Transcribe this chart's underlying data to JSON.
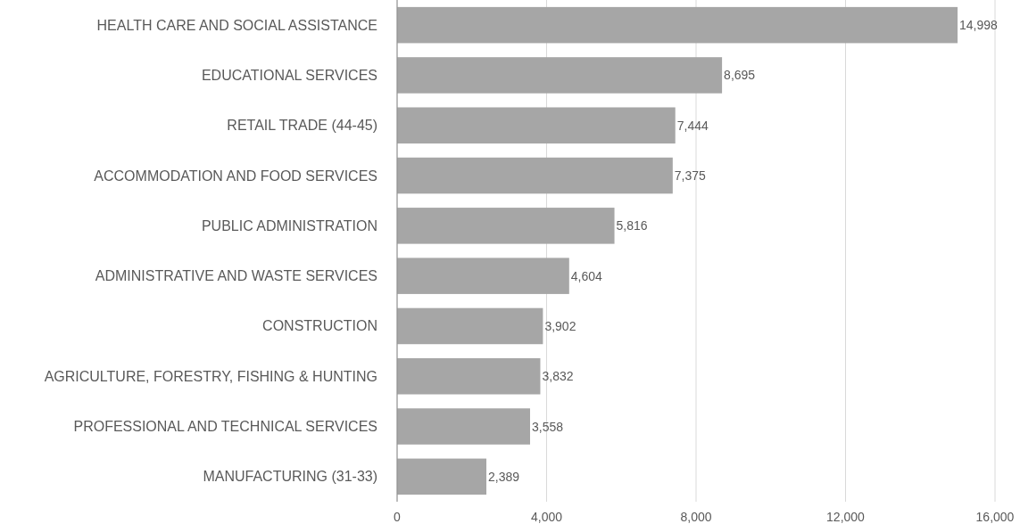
{
  "chart_data": {
    "type": "bar",
    "orientation": "horizontal",
    "categories": [
      "HEALTH CARE AND SOCIAL ASSISTANCE",
      "EDUCATIONAL SERVICES",
      "RETAIL TRADE (44-45)",
      "ACCOMMODATION AND FOOD SERVICES",
      "PUBLIC ADMINISTRATION",
      "ADMINISTRATIVE AND WASTE SERVICES",
      "CONSTRUCTION",
      "AGRICULTURE, FORESTRY, FISHING & HUNTING",
      "PROFESSIONAL AND TECHNICAL SERVICES",
      "MANUFACTURING (31-33)"
    ],
    "values": [
      14998,
      8695,
      7444,
      7375,
      5816,
      4604,
      3902,
      3832,
      3558,
      2389
    ],
    "value_labels": [
      "14,998",
      "8,695",
      "7,444",
      "7,375",
      "5,816",
      "4,604",
      "3,902",
      "3,832",
      "3,558",
      "2,389"
    ],
    "color": "#a6a6a6",
    "xlim": [
      0,
      16000
    ],
    "xticks": [
      0,
      {
        "value": 4000,
        "label": "4,000"
      },
      {
        "value": 8000,
        "label": "8,000"
      },
      {
        "value": 12000,
        "label": "12,000"
      },
      {
        "value": 16000,
        "label": "16,000"
      }
    ],
    "grid": "x"
  }
}
